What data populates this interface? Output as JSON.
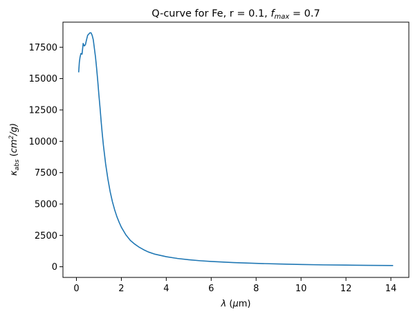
{
  "colors": {
    "series": "#1f77b4",
    "axes": "#000000",
    "background": "#ffffff"
  },
  "chart_data": {
    "type": "line",
    "title": {
      "prefix": "Q-curve for Fe, r = 0.1, ",
      "f_base": "f",
      "f_sub": "max",
      "suffix": " = 0.7"
    },
    "xlabel": {
      "symbol": "λ",
      "unit_open": " (",
      "unit_mu": "μ",
      "unit_rest": "m)"
    },
    "ylabel": {
      "kappa": "κ",
      "kappa_sub": "abs",
      "unit_open": " (",
      "unit_cm": "cm",
      "unit_exp": "2",
      "unit_rest": "/g)"
    },
    "xlim": [
      -0.6,
      14.8
    ],
    "ylim": [
      -850,
      19500
    ],
    "xticks": [
      "0",
      "2",
      "4",
      "6",
      "8",
      "10",
      "12",
      "14"
    ],
    "yticks": [
      "0",
      "2500",
      "5000",
      "7500",
      "10000",
      "12500",
      "15000",
      "17500"
    ],
    "grid": false,
    "legend": false,
    "series": [
      {
        "x": [
          0.1,
          0.13,
          0.16,
          0.2,
          0.25,
          0.3,
          0.35,
          0.4,
          0.45,
          0.5,
          0.55,
          0.6,
          0.65,
          0.7,
          0.75,
          0.8,
          0.85,
          0.9,
          0.95,
          1.0,
          1.05,
          1.1,
          1.15,
          1.2,
          1.3,
          1.4,
          1.5,
          1.6,
          1.7,
          1.8,
          1.9,
          2.0,
          2.2,
          2.4,
          2.6,
          2.8,
          3.0,
          3.2,
          3.5,
          4.0,
          4.5,
          5.0,
          5.5,
          6.0,
          7.0,
          8.0,
          9.0,
          10.0,
          11.0,
          12.0,
          13.0,
          14.1
        ],
        "y": [
          15500,
          16300,
          16700,
          17000,
          16950,
          17800,
          17600,
          17700,
          18100,
          18450,
          18550,
          18650,
          18650,
          18450,
          18100,
          17400,
          16700,
          15800,
          14800,
          13700,
          12700,
          11600,
          10600,
          9700,
          8200,
          7000,
          6000,
          5200,
          4550,
          4000,
          3550,
          3150,
          2550,
          2100,
          1800,
          1550,
          1350,
          1180,
          1000,
          800,
          660,
          560,
          480,
          420,
          330,
          270,
          220,
          180,
          150,
          130,
          110,
          95
        ]
      }
    ]
  }
}
